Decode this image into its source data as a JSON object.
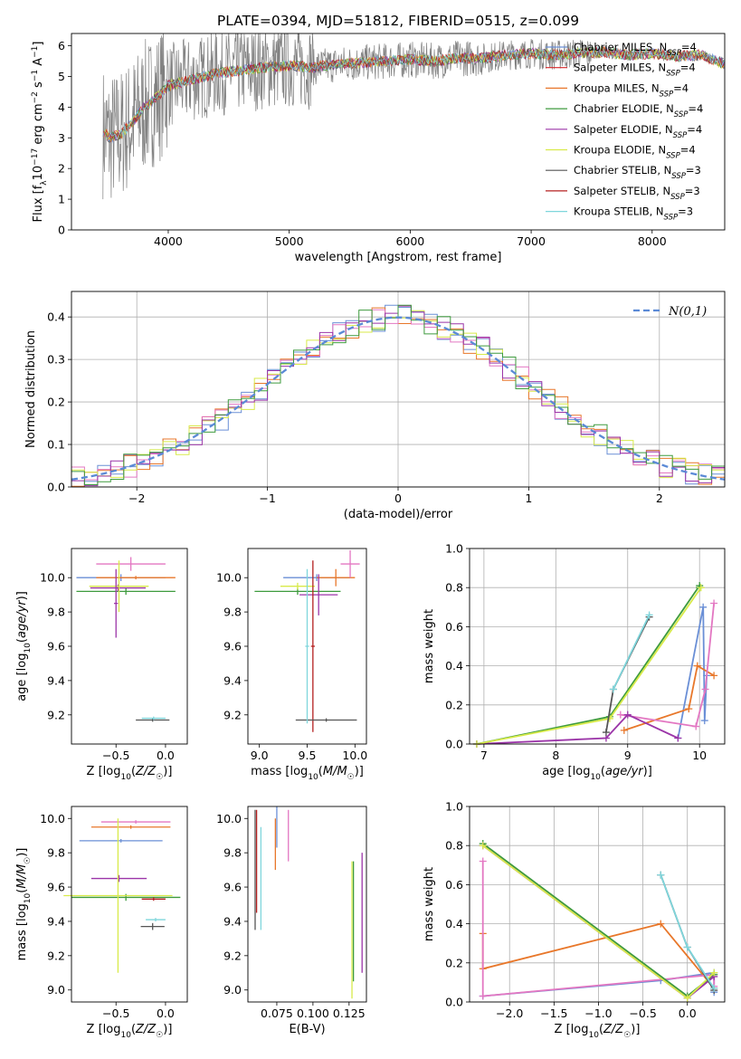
{
  "chart_data": [
    {
      "id": "spectrum",
      "type": "line",
      "title": "PLATE=0394, MJD=51812, FIBERID=0515, z=0.099",
      "xlabel": "wavelength [Angstrom, rest frame]",
      "ylabel": "Flux [fλ10⁻¹⁷ erg cm⁻² s⁻¹ A⁻¹]",
      "xlim": [
        3200,
        8600
      ],
      "ylim": [
        0,
        6.4
      ],
      "xticks": [
        4000,
        5000,
        6000,
        7000,
        8000
      ],
      "yticks": [
        0,
        1,
        2,
        3,
        4,
        5,
        6
      ],
      "grid": false,
      "legend_position": "top-right",
      "data_trace_color": "#808080",
      "data_trace_approx": {
        "x": [
          3460,
          3520,
          3600,
          3700,
          3800,
          3900,
          4000,
          4100,
          4200,
          4300,
          4400,
          4600,
          4800,
          5000,
          5200,
          5400,
          5600,
          5800,
          6000,
          6200,
          6400,
          6600,
          6800,
          7000,
          7200,
          7400,
          7600,
          7800,
          8000,
          8200,
          8400,
          8600
        ],
        "y": [
          3.2,
          3.0,
          3.1,
          3.5,
          4.0,
          4.3,
          4.7,
          4.8,
          4.9,
          5.0,
          5.1,
          5.2,
          5.3,
          5.35,
          5.3,
          5.4,
          5.45,
          5.5,
          5.55,
          5.5,
          5.6,
          5.6,
          5.7,
          5.75,
          5.7,
          5.75,
          5.8,
          5.7,
          5.75,
          5.65,
          5.7,
          5.4
        ]
      },
      "series": [
        {
          "name": "Chabrier MILES, N_SSP=4",
          "color": "#6a8fd6"
        },
        {
          "name": "Salpeter MILES, N_SSP=4",
          "color": "#d62728"
        },
        {
          "name": "Kroupa MILES, N_SSP=4",
          "color": "#e8772a"
        },
        {
          "name": "Chabrier ELODIE, N_SSP=4",
          "color": "#3e9b3e"
        },
        {
          "name": "Salpeter ELODIE, N_SSP=4",
          "color": "#9b35a8"
        },
        {
          "name": "Kroupa ELODIE, N_SSP=4",
          "color": "#d8ea4a"
        },
        {
          "name": "Chabrier STELIB, N_SSP=3",
          "color": "#555555"
        },
        {
          "name": "Salpeter STELIB, N_SSP=3",
          "color": "#b52020"
        },
        {
          "name": "Kroupa STELIB, N_SSP=3",
          "color": "#7fd6dc"
        }
      ],
      "legend": {
        "lines": [
          [
            "Chabrier MILES, N",
            "SSP",
            "=4"
          ],
          [
            "Salpeter MILES, N",
            "SSP",
            "=4"
          ],
          [
            "Kroupa MILES, N",
            "SSP",
            "=4"
          ],
          [
            "Chabrier ELODIE, N",
            "SSP",
            "=4"
          ],
          [
            "Salpeter ELODIE, N",
            "SSP",
            "=4"
          ],
          [
            "Kroupa ELODIE, N",
            "SSP",
            "=4"
          ],
          [
            "Chabrier STELIB, N",
            "SSP",
            "=3"
          ],
          [
            "Salpeter STELIB, N",
            "SSP",
            "=3"
          ],
          [
            "Kroupa STELIB, N",
            "SSP",
            "=3"
          ]
        ]
      }
    },
    {
      "id": "residuals",
      "type": "line",
      "xlabel": "(data-model)/error",
      "ylabel": "Normed distribution",
      "xlim": [
        -2.5,
        2.5
      ],
      "ylim": [
        0,
        0.46
      ],
      "xticks": [
        -2,
        -1,
        0,
        1,
        2
      ],
      "yticks": [
        0.0,
        0.1,
        0.2,
        0.3,
        0.4
      ],
      "grid": true,
      "legend_position": "top-right",
      "reference_curve": {
        "name": "N(0,1)",
        "mean": 0,
        "sigma": 1,
        "color": "#5b8ad6"
      },
      "histogram_bin_width": 0.1,
      "histogram_colors": [
        "#6a8fd6",
        "#e8772a",
        "#e377c2",
        "#d8ea4a",
        "#9b35a8",
        "#3e9b3e"
      ]
    },
    {
      "id": "age-vs-Z",
      "type": "scatter",
      "xlabel": "Z [log10(Z/Z☉)]",
      "ylabel": "age [log10(age/yr)]",
      "xlim": [
        -0.95,
        0.22
      ],
      "ylim": [
        9.03,
        10.17
      ],
      "xticks": [
        -0.5,
        0.0
      ],
      "yticks": [
        9.2,
        9.4,
        9.6,
        9.8,
        10.0
      ],
      "points": [
        {
          "x": -0.45,
          "y": 10.0,
          "xerr": 0.45,
          "yerr": 0.02,
          "color": "#6a8fd6"
        },
        {
          "x": -0.3,
          "y": 10.0,
          "xerr": 0.4,
          "yerr": 0.01,
          "color": "#e8772a"
        },
        {
          "x": -0.35,
          "y": 10.08,
          "xerr": 0.35,
          "yerr": 0.04,
          "color": "#e377c2"
        },
        {
          "x": -0.4,
          "y": 9.92,
          "xerr": 0.5,
          "yerr": 0.02,
          "color": "#3e9b3e"
        },
        {
          "x": -0.48,
          "y": 9.94,
          "xerr": 0.28,
          "yerr": 0.02,
          "color": "#9b35a8"
        },
        {
          "x": -0.47,
          "y": 9.95,
          "xerr": 0.3,
          "yerr": 0.15,
          "color": "#d8ea4a"
        },
        {
          "x": -0.13,
          "y": 9.17,
          "xerr": 0.17,
          "yerr": 0.01,
          "color": "#555555"
        },
        {
          "x": -0.12,
          "y": 9.18,
          "xerr": 0.12,
          "yerr": 0.01,
          "color": "#7fd6dc"
        },
        {
          "x": -0.5,
          "y": 9.85,
          "xerr": 0.02,
          "yerr": 0.2,
          "color": "#9b35a8"
        }
      ]
    },
    {
      "id": "age-vs-mass",
      "type": "scatter",
      "xlabel": "mass [log10(M/M☉)]",
      "ylabel": "",
      "xlim": [
        8.88,
        10.12
      ],
      "ylim": [
        9.03,
        10.17
      ],
      "xticks": [
        9.0,
        9.5,
        10.0
      ],
      "yticks": [
        9.2,
        9.4,
        9.6,
        9.8,
        10.0
      ],
      "points": [
        {
          "x": 9.6,
          "y": 10.0,
          "xerr": 0.35,
          "yerr": 0.02,
          "color": "#6a8fd6"
        },
        {
          "x": 9.8,
          "y": 10.0,
          "xerr": 0.2,
          "yerr": 0.05,
          "color": "#e8772a"
        },
        {
          "x": 9.95,
          "y": 10.08,
          "xerr": 0.1,
          "yerr": 0.08,
          "color": "#e377c2"
        },
        {
          "x": 9.4,
          "y": 9.92,
          "xerr": 0.45,
          "yerr": 0.02,
          "color": "#3e9b3e"
        },
        {
          "x": 9.62,
          "y": 9.9,
          "xerr": 0.2,
          "yerr": 0.12,
          "color": "#9b35a8"
        },
        {
          "x": 9.4,
          "y": 9.95,
          "xerr": 0.18,
          "yerr": 0.02,
          "color": "#d8ea4a"
        },
        {
          "x": 9.56,
          "y": 9.6,
          "xerr": 0.02,
          "yerr": 0.5,
          "color": "#b52020"
        },
        {
          "x": 9.7,
          "y": 9.17,
          "xerr": 0.32,
          "yerr": 0.01,
          "color": "#555555"
        },
        {
          "x": 9.5,
          "y": 9.6,
          "xerr": 0.02,
          "yerr": 0.45,
          "color": "#7fd6dc"
        }
      ]
    },
    {
      "id": "weight-vs-age",
      "type": "line",
      "xlabel": "age [log10(age/yr)]",
      "ylabel": "mass weight",
      "xlim": [
        6.8,
        10.35
      ],
      "ylim": [
        0,
        1.0
      ],
      "xticks": [
        7,
        8,
        9,
        10
      ],
      "yticks": [
        0.0,
        0.2,
        0.4,
        0.6,
        0.8,
        1.0
      ],
      "grid": true,
      "series": [
        {
          "color": "#6a8fd6",
          "x": [
            9.7,
            10.05,
            10.07,
            10.1
          ],
          "y": [
            0.03,
            0.7,
            0.12,
            0.35
          ]
        },
        {
          "color": "#e8772a",
          "x": [
            8.95,
            9.85,
            9.97,
            10.2
          ],
          "y": [
            0.07,
            0.18,
            0.4,
            0.35
          ]
        },
        {
          "color": "#e377c2",
          "x": [
            8.9,
            9.95,
            10.08,
            10.2
          ],
          "y": [
            0.15,
            0.09,
            0.28,
            0.72
          ]
        },
        {
          "color": "#3e9b3e",
          "x": [
            6.9,
            8.75,
            10.0,
            10.0
          ],
          "y": [
            0.0,
            0.14,
            0.81,
            0.8
          ]
        },
        {
          "color": "#9b35a8",
          "x": [
            6.9,
            8.7,
            9.0,
            9.7
          ],
          "y": [
            0.0,
            0.03,
            0.15,
            0.03
          ]
        },
        {
          "color": "#d8ea4a",
          "x": [
            6.9,
            8.75,
            10.02
          ],
          "y": [
            0.0,
            0.13,
            0.8
          ]
        },
        {
          "color": "#555555",
          "x": [
            8.7,
            8.8,
            9.3
          ],
          "y": [
            0.06,
            0.28,
            0.65
          ]
        },
        {
          "color": "#7fd6dc",
          "x": [
            8.8,
            9.3
          ],
          "y": [
            0.28,
            0.66
          ]
        }
      ]
    },
    {
      "id": "mass-vs-Z",
      "type": "scatter",
      "xlabel": "Z [log10(Z/Z☉)]",
      "ylabel": "mass [log10(M/M☉)]",
      "xlim": [
        -0.95,
        0.22
      ],
      "ylim": [
        8.93,
        10.07
      ],
      "xticks": [
        -0.5,
        0.0
      ],
      "yticks": [
        9.0,
        9.2,
        9.4,
        9.6,
        9.8,
        10.0
      ],
      "points": [
        {
          "x": -0.45,
          "y": 9.87,
          "xerr": 0.42,
          "yerr": 0.01,
          "color": "#6a8fd6"
        },
        {
          "x": -0.35,
          "y": 9.95,
          "xerr": 0.4,
          "yerr": 0.01,
          "color": "#e8772a"
        },
        {
          "x": -0.3,
          "y": 9.98,
          "xerr": 0.35,
          "yerr": 0.01,
          "color": "#e377c2"
        },
        {
          "x": -0.4,
          "y": 9.54,
          "xerr": 0.55,
          "yerr": 0.02,
          "color": "#3e9b3e"
        },
        {
          "x": -0.47,
          "y": 9.65,
          "xerr": 0.28,
          "yerr": 0.02,
          "color": "#9b35a8"
        },
        {
          "x": -0.48,
          "y": 9.55,
          "xerr": 0.55,
          "yerr": 0.45,
          "color": "#d8ea4a"
        },
        {
          "x": -0.13,
          "y": 9.37,
          "xerr": 0.12,
          "yerr": 0.02,
          "color": "#555555"
        },
        {
          "x": -0.1,
          "y": 9.41,
          "xerr": 0.1,
          "yerr": 0.01,
          "color": "#7fd6dc"
        },
        {
          "x": -0.12,
          "y": 9.53,
          "xerr": 0.12,
          "yerr": 0.01,
          "color": "#b52020"
        }
      ]
    },
    {
      "id": "mass-vs-EBV",
      "type": "scatter",
      "xlabel": "E(B-V)",
      "ylabel": "",
      "xlim": [
        0.055,
        0.137
      ],
      "ylim": [
        8.93,
        10.07
      ],
      "xticks": [
        0.075,
        0.1,
        0.125
      ],
      "xtick_labels": [
        "0.075",
        "0.100",
        "0.125"
      ],
      "yticks": [
        9.0,
        9.2,
        9.4,
        9.6,
        9.8,
        10.0
      ],
      "points": [
        {
          "x": 0.06,
          "y": 9.7,
          "yerr": 0.35,
          "color": "#555555"
        },
        {
          "x": 0.061,
          "y": 9.75,
          "yerr": 0.3,
          "color": "#b52020"
        },
        {
          "x": 0.064,
          "y": 9.65,
          "yerr": 0.3,
          "color": "#7fd6dc"
        },
        {
          "x": 0.074,
          "y": 9.85,
          "yerr": 0.15,
          "color": "#e8772a"
        },
        {
          "x": 0.075,
          "y": 9.95,
          "yerr": 0.12,
          "color": "#6a8fd6"
        },
        {
          "x": 0.083,
          "y": 9.9,
          "yerr": 0.15,
          "color": "#e377c2"
        },
        {
          "x": 0.127,
          "y": 9.35,
          "yerr": 0.4,
          "color": "#d8ea4a"
        },
        {
          "x": 0.128,
          "y": 9.4,
          "yerr": 0.35,
          "color": "#3e9b3e"
        },
        {
          "x": 0.134,
          "y": 9.45,
          "yerr": 0.35,
          "color": "#9b35a8"
        }
      ]
    },
    {
      "id": "weight-vs-Z",
      "type": "line",
      "xlabel": "Z [log10(Z/Z☉)]",
      "ylabel": "mass weight",
      "xlim": [
        -2.45,
        0.42
      ],
      "ylim": [
        0,
        1.0
      ],
      "xticks": [
        -2.0,
        -1.5,
        -1.0,
        -0.5,
        0.0
      ],
      "yticks": [
        0.0,
        0.2,
        0.4,
        0.6,
        0.8,
        1.0
      ],
      "grid": true,
      "series": [
        {
          "color": "#6a8fd6",
          "x": [
            -2.3,
            -0.3,
            0.3,
            0.3
          ],
          "y": [
            0.03,
            0.11,
            0.15,
            0.05
          ]
        },
        {
          "color": "#e8772a",
          "x": [
            -2.3,
            -2.3,
            -0.3,
            0.3
          ],
          "y": [
            0.35,
            0.17,
            0.4,
            0.07
          ]
        },
        {
          "color": "#e377c2",
          "x": [
            -2.3,
            -2.3,
            0.3,
            0.3
          ],
          "y": [
            0.72,
            0.03,
            0.14,
            0.08
          ]
        },
        {
          "color": "#3e9b3e",
          "x": [
            -2.3,
            0.0,
            0.3
          ],
          "y": [
            0.81,
            0.03,
            0.14
          ]
        },
        {
          "color": "#9b35a8",
          "x": [
            -2.3,
            0.0,
            0.3
          ],
          "y": [
            0.8,
            0.02,
            0.13
          ]
        },
        {
          "color": "#d8ea4a",
          "x": [
            -2.3,
            0.0,
            0.3
          ],
          "y": [
            0.8,
            0.02,
            0.15
          ]
        },
        {
          "color": "#555555",
          "x": [
            -0.3,
            0.0,
            0.3
          ],
          "y": [
            0.65,
            0.28,
            0.06
          ]
        },
        {
          "color": "#7fd6dc",
          "x": [
            -0.3,
            0.0,
            0.3
          ],
          "y": [
            0.65,
            0.28,
            0.07
          ]
        }
      ]
    }
  ]
}
